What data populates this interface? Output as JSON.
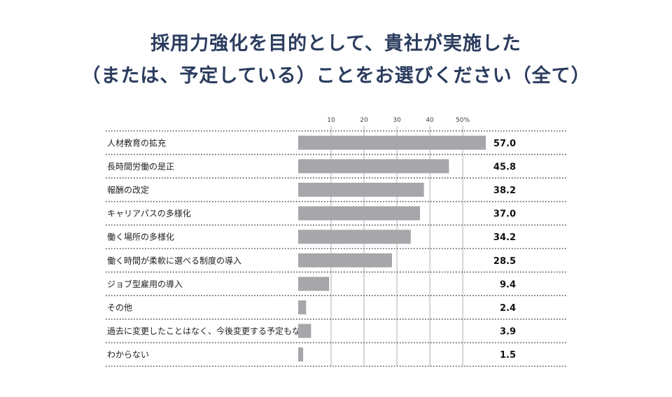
{
  "title": {
    "line1": "採用力強化を目的として、貴社が実施した",
    "line2": "（または、予定している）ことをお選びください（全て）"
  },
  "colors": {
    "title": "#2b3c5e",
    "bar": "#a6a6ab",
    "grid": "#b0b0b0",
    "dots": "#555555"
  },
  "chart_data": {
    "type": "bar",
    "orientation": "horizontal",
    "title": "採用力強化を目的として、貴社が実施した（または、予定している）ことをお選びください（全て）",
    "categories": [
      "人材教育の拡充",
      "長時間労働の是正",
      "報酬の改定",
      "キャリアパスの多様化",
      "働く場所の多様化",
      "働く時間が柔軟に選べる制度の導入",
      "ジョブ型雇用の導入",
      "その他",
      "過去に変更したことはなく、今後変更する予定もない",
      "わからない"
    ],
    "values": [
      57.0,
      45.8,
      38.2,
      37.0,
      34.2,
      28.5,
      9.4,
      2.4,
      3.9,
      1.5
    ],
    "value_labels": [
      "57.0",
      "45.8",
      "38.2",
      "37.0",
      "34.2",
      "28.5",
      "9.4",
      "2.4",
      "3.9",
      "1.5"
    ],
    "xticks": [
      10,
      20,
      30,
      40,
      50
    ],
    "xtick_labels": [
      "10",
      "20",
      "30",
      "40",
      "50%"
    ],
    "xlim": [
      0,
      57.0
    ],
    "grid": true
  }
}
